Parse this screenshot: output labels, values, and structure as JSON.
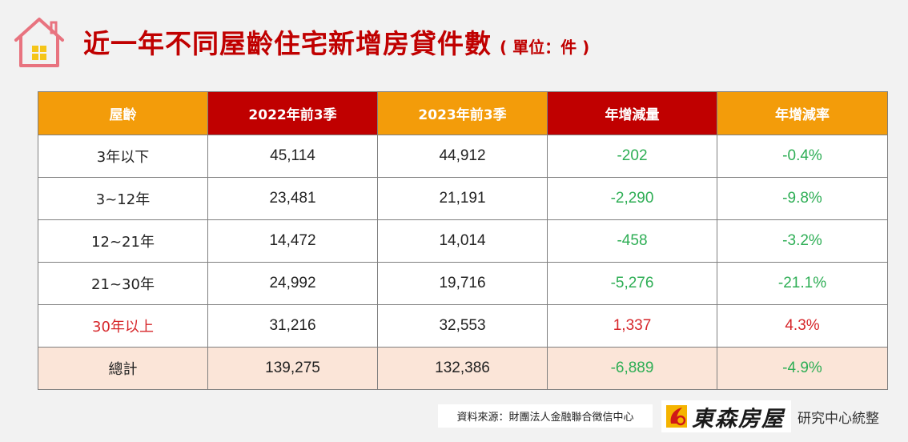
{
  "header": {
    "title": "近一年不同屋齡住宅新增房貸件數",
    "unit": "( 單位：件 )"
  },
  "table": {
    "headers": [
      "屋齡",
      "2022年前3季",
      "2023年前3季",
      "年增減量",
      "年增減率"
    ],
    "rows": [
      {
        "age": "3年以下",
        "y2022": "45,114",
        "y2023": "44,912",
        "change": "-202",
        "rate": "-0.4%"
      },
      {
        "age": "3~12年",
        "y2022": "23,481",
        "y2023": "21,191",
        "change": "-2,290",
        "rate": "-9.8%"
      },
      {
        "age": "12~21年",
        "y2022": "14,472",
        "y2023": "14,014",
        "change": "-458",
        "rate": "-3.2%"
      },
      {
        "age": "21~30年",
        "y2022": "24,992",
        "y2023": "19,716",
        "change": "-5,276",
        "rate": "-21.1%"
      },
      {
        "age": "30年以上",
        "y2022": "31,216",
        "y2023": "32,553",
        "change": "1,337",
        "rate": "4.3%"
      },
      {
        "age": "總計",
        "y2022": "139,275",
        "y2023": "132,386",
        "change": "-6,889",
        "rate": "-4.9%"
      }
    ]
  },
  "footer": {
    "source": "資料來源：財團法人金融聯合徵信中心",
    "brand": "東森房屋",
    "brand_suffix": "研究中心統整"
  },
  "colors": {
    "title_red": "#c00000",
    "header_orange": "#f39c0a",
    "header_red": "#c00000",
    "negative_green": "#2eae55",
    "positive_red": "#d6262a",
    "total_row_bg": "#fbe5d8"
  },
  "icons": {
    "title": "house-icon",
    "brand": "brand-logo-icon"
  }
}
